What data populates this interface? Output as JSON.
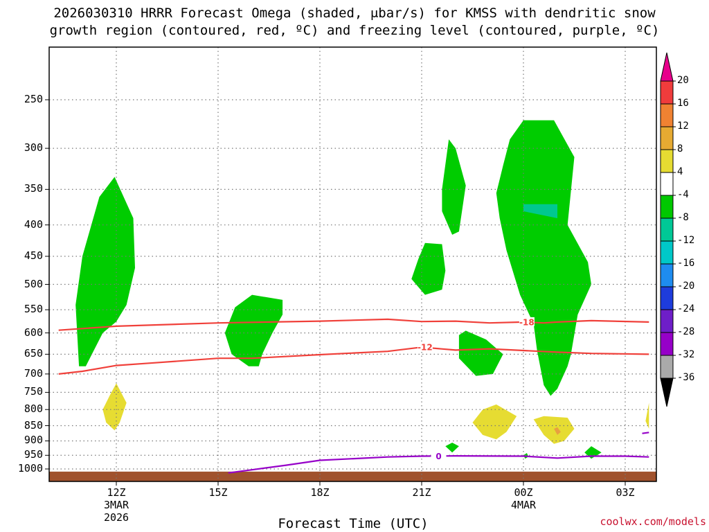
{
  "title_line1": "2026030310 HRRR Forecast Omega (shaded, μbar/s) for KMSS with dendritic snow",
  "title_line2": "growth region (contoured, red, ºC) and freezing level (contoured, purple, ºC)",
  "xlabel": "Forecast Time (UTC)",
  "credit": "coolwx.com/models",
  "colors": {
    "green": "#00cc00",
    "teal": "#00c890",
    "yellow": "#e6dc32",
    "orange_spot": "#e8a040",
    "red_contour": "#f0403a",
    "purple_contour": "#9600c8",
    "ground": "#a0522d",
    "grid": "#777777"
  },
  "colorbar": {
    "colors": [
      "#e8008c",
      "#f03c3c",
      "#f08232",
      "#e6aa32",
      "#e6dc32",
      "#ffffff",
      "#00c800",
      "#00c896",
      "#00c8c8",
      "#1e8cf0",
      "#1e3cdc",
      "#6e1ec8",
      "#9600c8",
      "#aaaaaa",
      "#000000"
    ],
    "ticks": [
      "20",
      "16",
      "12",
      "8",
      "4",
      "-4",
      "-8",
      "-12",
      "-16",
      "-20",
      "-24",
      "-28",
      "-32",
      "-36"
    ]
  },
  "chart_data": {
    "type": "heatmap",
    "title": "2026030310 HRRR Forecast Omega (shaded, μbar/s) for KMSS with dendritic snow growth region (contoured, red, ºC) and freezing level (contoured, purple, ºC)",
    "xlabel": "Forecast Time (UTC)",
    "ylabel": "",
    "y_scale": "log",
    "ylim": [
      1025,
      200
    ],
    "xlim": [
      10.3,
      27.7
    ],
    "x_unit": "hours after 00Z 3 Mar 2026",
    "x_ticks": [
      {
        "value": 12,
        "label": "12Z",
        "sub": [
          "3MAR",
          "2026"
        ]
      },
      {
        "value": 15,
        "label": "15Z",
        "sub": []
      },
      {
        "value": 18,
        "label": "18Z",
        "sub": []
      },
      {
        "value": 21,
        "label": "21Z",
        "sub": []
      },
      {
        "value": 24,
        "label": "00Z",
        "sub": [
          "4MAR"
        ]
      },
      {
        "value": 27,
        "label": "03Z",
        "sub": []
      }
    ],
    "y_ticks": [
      250,
      300,
      350,
      400,
      450,
      500,
      550,
      600,
      650,
      700,
      750,
      800,
      850,
      900,
      950,
      1000
    ],
    "grid": true,
    "contours": [
      {
        "name": "-18",
        "label": "-18",
        "color": "red",
        "points": [
          [
            10.3,
            594
          ],
          [
            12,
            585
          ],
          [
            15,
            578
          ],
          [
            18,
            574
          ],
          [
            20,
            570
          ],
          [
            21,
            575
          ],
          [
            22,
            574
          ],
          [
            23,
            578
          ],
          [
            24,
            576
          ],
          [
            24.6,
            578
          ],
          [
            25,
            576
          ],
          [
            26,
            573
          ],
          [
            27.7,
            576
          ]
        ]
      },
      {
        "name": "-12",
        "label": "-12",
        "color": "red",
        "points": [
          [
            10.3,
            700
          ],
          [
            11,
            693
          ],
          [
            12,
            678
          ],
          [
            13,
            672
          ],
          [
            15,
            660
          ],
          [
            16,
            660
          ],
          [
            18,
            651
          ],
          [
            20,
            643
          ],
          [
            21,
            633
          ],
          [
            22,
            640
          ],
          [
            23,
            637
          ],
          [
            24,
            641
          ],
          [
            25,
            645
          ],
          [
            26,
            648
          ],
          [
            27.7,
            650
          ]
        ]
      },
      {
        "name": "0",
        "label": "0",
        "color": "purple",
        "points": [
          [
            15.3,
            1015
          ],
          [
            16,
            1003
          ],
          [
            17,
            986
          ],
          [
            18,
            968
          ],
          [
            19,
            962
          ],
          [
            20,
            956
          ],
          [
            21,
            953
          ],
          [
            22,
            952
          ],
          [
            24,
            953
          ],
          [
            25,
            960
          ],
          [
            26,
            953
          ],
          [
            27,
            953
          ],
          [
            27.7,
            956
          ]
        ]
      },
      {
        "name": "0",
        "label": "",
        "color": "purple",
        "points": [
          [
            27.5,
            875
          ],
          [
            27.7,
            872
          ]
        ]
      }
    ],
    "shaded_regions": [
      {
        "level": "-8 to -4",
        "color": "green",
        "points": [
          [
            10.9,
            680
          ],
          [
            10.8,
            540
          ],
          [
            11,
            450
          ],
          [
            11.5,
            360
          ],
          [
            11.95,
            334
          ],
          [
            12.5,
            390
          ],
          [
            12.55,
            470
          ],
          [
            12.3,
            540
          ],
          [
            12,
            575
          ],
          [
            11.6,
            600
          ],
          [
            11.1,
            680
          ]
        ]
      },
      {
        "name": "green",
        "level": "-8 to -4",
        "color": "green",
        "points": [
          [
            15.2,
            600
          ],
          [
            15.5,
            545
          ],
          [
            16,
            520
          ],
          [
            16.9,
            530
          ],
          [
            16.9,
            560
          ],
          [
            16.6,
            600
          ],
          [
            16.3,
            650
          ],
          [
            16.2,
            680
          ],
          [
            15.9,
            680
          ],
          [
            15.4,
            650
          ]
        ]
      },
      {
        "level": "-8 to -4",
        "color": "green",
        "points": [
          [
            20.9,
            455
          ],
          [
            21.1,
            428
          ],
          [
            21.6,
            430
          ],
          [
            21.7,
            475
          ],
          [
            21.6,
            510
          ],
          [
            21.1,
            520
          ],
          [
            20.7,
            490
          ]
        ]
      },
      {
        "level": "-8 to -4",
        "color": "green",
        "points": [
          [
            21.6,
            350
          ],
          [
            21.8,
            290
          ],
          [
            22,
            300
          ],
          [
            22.3,
            345
          ],
          [
            22.1,
            410
          ],
          [
            21.9,
            415
          ],
          [
            21.6,
            380
          ]
        ]
      },
      {
        "level": "-8 to -4",
        "color": "green",
        "points": [
          [
            22.1,
            660
          ],
          [
            22.1,
            605
          ],
          [
            22.3,
            595
          ],
          [
            22.9,
            615
          ],
          [
            23.4,
            650
          ],
          [
            23.1,
            700
          ],
          [
            22.6,
            705
          ]
        ]
      },
      {
        "level": "-8 to -4",
        "color": "green",
        "points": [
          [
            23.2,
            355
          ],
          [
            23.4,
            320
          ],
          [
            23.6,
            290
          ],
          [
            24,
            270
          ],
          [
            24.9,
            270
          ],
          [
            25.5,
            310
          ],
          [
            25.3,
            400
          ],
          [
            25.9,
            460
          ],
          [
            26,
            500
          ],
          [
            25.6,
            560
          ],
          [
            25.4,
            650
          ],
          [
            25.3,
            680
          ],
          [
            25,
            740
          ],
          [
            24.8,
            760
          ],
          [
            24.6,
            730
          ],
          [
            24.4,
            640
          ],
          [
            24.3,
            580
          ],
          [
            23.9,
            520
          ],
          [
            23.5,
            440
          ],
          [
            23.3,
            390
          ]
        ]
      },
      {
        "level": "-12 to -8",
        "color": "teal",
        "points": [
          [
            24,
            370
          ],
          [
            25,
            370
          ],
          [
            25,
            390
          ],
          [
            24,
            380
          ]
        ]
      },
      {
        "level": "4 to 8",
        "color": "yellow",
        "points": [
          [
            11.6,
            800
          ],
          [
            11.8,
            760
          ],
          [
            12,
            725
          ],
          [
            12.3,
            780
          ],
          [
            12.1,
            840
          ],
          [
            11.95,
            865
          ],
          [
            11.7,
            840
          ]
        ]
      },
      {
        "level": "4 to 8",
        "color": "yellow",
        "points": [
          [
            22.5,
            840
          ],
          [
            22.8,
            800
          ],
          [
            23.2,
            785
          ],
          [
            23.8,
            820
          ],
          [
            23.5,
            870
          ],
          [
            23.2,
            895
          ],
          [
            22.8,
            880
          ]
        ]
      },
      {
        "level": "4 to 8",
        "color": "yellow",
        "points": [
          [
            24.3,
            830
          ],
          [
            24.6,
            820
          ],
          [
            25.3,
            825
          ],
          [
            25.5,
            860
          ],
          [
            25.2,
            900
          ],
          [
            24.9,
            910
          ],
          [
            24.6,
            880
          ]
        ]
      },
      {
        "level": "8 to 12",
        "color": "orange",
        "points": [
          [
            24.9,
            860
          ],
          [
            25,
            855
          ],
          [
            25.1,
            870
          ],
          [
            25,
            880
          ]
        ]
      },
      {
        "level": "4 to 8",
        "color": "yellow",
        "points": [
          [
            27.6,
            835
          ],
          [
            27.7,
            780
          ],
          [
            27.7,
            860
          ]
        ]
      },
      {
        "level": "-8 to -4",
        "color": "green",
        "points": [
          [
            21.7,
            918
          ],
          [
            21.9,
            906
          ],
          [
            22.1,
            918
          ],
          [
            21.9,
            940
          ]
        ]
      },
      {
        "level": "-8 to -4",
        "color": "green",
        "points": [
          [
            24,
            950
          ],
          [
            24.1,
            942
          ],
          [
            24.15,
            955
          ],
          [
            24.05,
            962
          ]
        ]
      },
      {
        "level": "-8 to -4",
        "color": "green",
        "points": [
          [
            25.8,
            940
          ],
          [
            26,
            918
          ],
          [
            26.3,
            940
          ],
          [
            26,
            962
          ]
        ]
      }
    ],
    "ground_level": 1010
  }
}
